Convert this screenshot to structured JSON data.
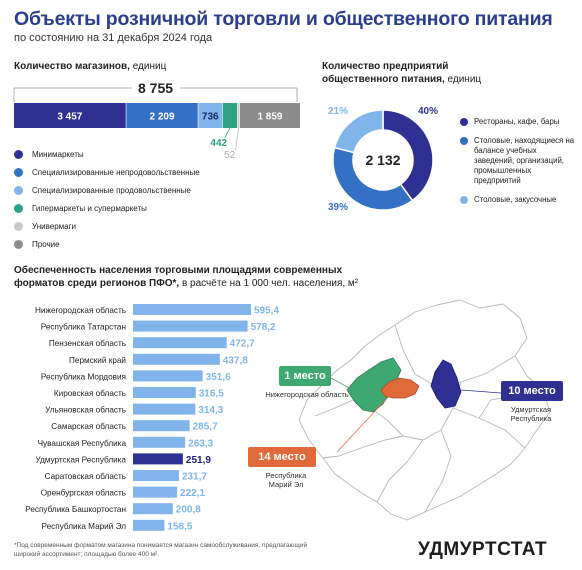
{
  "title": "Объекты розничной торговли и общественного питания",
  "subtitle": "по состоянию на 31 декабря 2024 года",
  "colors": {
    "dark_blue": "#2e3192",
    "blue": "#3470c4",
    "light_blue": "#80b4ea",
    "teal": "#2fa084",
    "light_gray": "#c9c9c9",
    "gray": "#8c8c8c",
    "highlight": "#2e3192",
    "green": "#3fa871",
    "orange": "#e06a3a"
  },
  "stores": {
    "title": "Количество магазинов,",
    "unit": "единиц",
    "total": "8 755",
    "outside_labels": [
      "442",
      "52"
    ],
    "legend": [
      {
        "label": "Минимаркеты",
        "color": "#2e3192"
      },
      {
        "label": "Специализированные непродовольственные",
        "color": "#3470c4"
      },
      {
        "label": "Специализированные продовольственные",
        "color": "#80b4ea"
      },
      {
        "label": "Гипермаркеты и супермаркеты",
        "color": "#2fa084"
      },
      {
        "label": "Универмаги",
        "color": "#c9c9c9"
      },
      {
        "label": "Прочие",
        "color": "#8c8c8c"
      }
    ]
  },
  "catering": {
    "title_line1": "Количество предприятий",
    "title_line2": "общественного питания,",
    "unit": "единиц",
    "total": "2 132",
    "legend": [
      {
        "label": "Рестораны, кафе, бары",
        "color": "#2e3192"
      },
      {
        "label": "Столовые, находящиеся на балансе учебных заведений, организаций, промышленных предприятий",
        "color": "#3470c4"
      },
      {
        "label": "Столовые, закусочные",
        "color": "#80b4ea"
      }
    ]
  },
  "provision": {
    "title_line1": "Обеспеченность населения торговыми площадями современных",
    "title_line2": "форматов среди регионов ПФО*,",
    "unit": "в расчёте на 1 000 чел. населения, м²"
  },
  "map": {
    "badges": [
      {
        "text": "1 место",
        "caption": "Нижегородская область"
      },
      {
        "text": "10 место",
        "caption": "Удмуртская Республика"
      },
      {
        "text": "14 место",
        "caption": "Республика Марий Эл"
      }
    ]
  },
  "footnote": "*Под современным форматом магазина понимается магазин самообслуживания, предлагающий широкий ассортимент; площадью более 400 м².",
  "brand": "УДМУРТСТАТ",
  "chart_data": [
    {
      "type": "bar",
      "orientation": "horizontal-stacked",
      "title": "Количество магазинов, единиц",
      "total": 8755,
      "series": [
        {
          "name": "Минимаркеты",
          "value": 3457
        },
        {
          "name": "Специализированные непродовольственные",
          "value": 2209
        },
        {
          "name": "Специализированные продовольственные",
          "value": 736
        },
        {
          "name": "Гипермаркеты и супермаркеты",
          "value": 442
        },
        {
          "name": "Универмаги",
          "value": 52
        },
        {
          "name": "Прочие",
          "value": 1859
        }
      ],
      "labels": [
        "3 457",
        "2 209",
        "736",
        "442",
        "52",
        "1 859"
      ]
    },
    {
      "type": "pie",
      "title": "Количество предприятий общественного питания, единиц",
      "total": 2132,
      "categories": [
        "Рестораны, кафе, бары",
        "Столовые, находящиеся на балансе учебных заведений, организаций, промышленных предприятий",
        "Столовые, закусочные"
      ],
      "values": [
        40,
        39,
        21
      ],
      "labels": [
        "40%",
        "39%",
        "21%"
      ]
    },
    {
      "type": "bar",
      "orientation": "horizontal",
      "title": "Обеспеченность населения торговыми площадями современных форматов среди регионов ПФО*",
      "categories": [
        "Нижегородская область",
        "Республика Татарстан",
        "Пензенская область",
        "Пермский край",
        "Республика Мордовия",
        "Кировская область",
        "Ульяновская область",
        "Самарская область",
        "Чувашская Республика",
        "Удмуртская Республика",
        "Саратовская область",
        "Оренбургская область",
        "Республика Башкортостан",
        "Республика Марий Эл"
      ],
      "values": [
        595.4,
        578.2,
        472.7,
        437.8,
        351.6,
        316.5,
        314.3,
        285.7,
        263.3,
        251.9,
        231.7,
        222.1,
        200.8,
        158.5
      ],
      "labels": [
        "595,4",
        "578,2",
        "472,7",
        "437,8",
        "351,6",
        "316,5",
        "314,3",
        "285,7",
        "263,3",
        "251,9",
        "231,7",
        "222,1",
        "200,8",
        "158,5"
      ],
      "highlight": "Удмуртская Республика"
    }
  ]
}
